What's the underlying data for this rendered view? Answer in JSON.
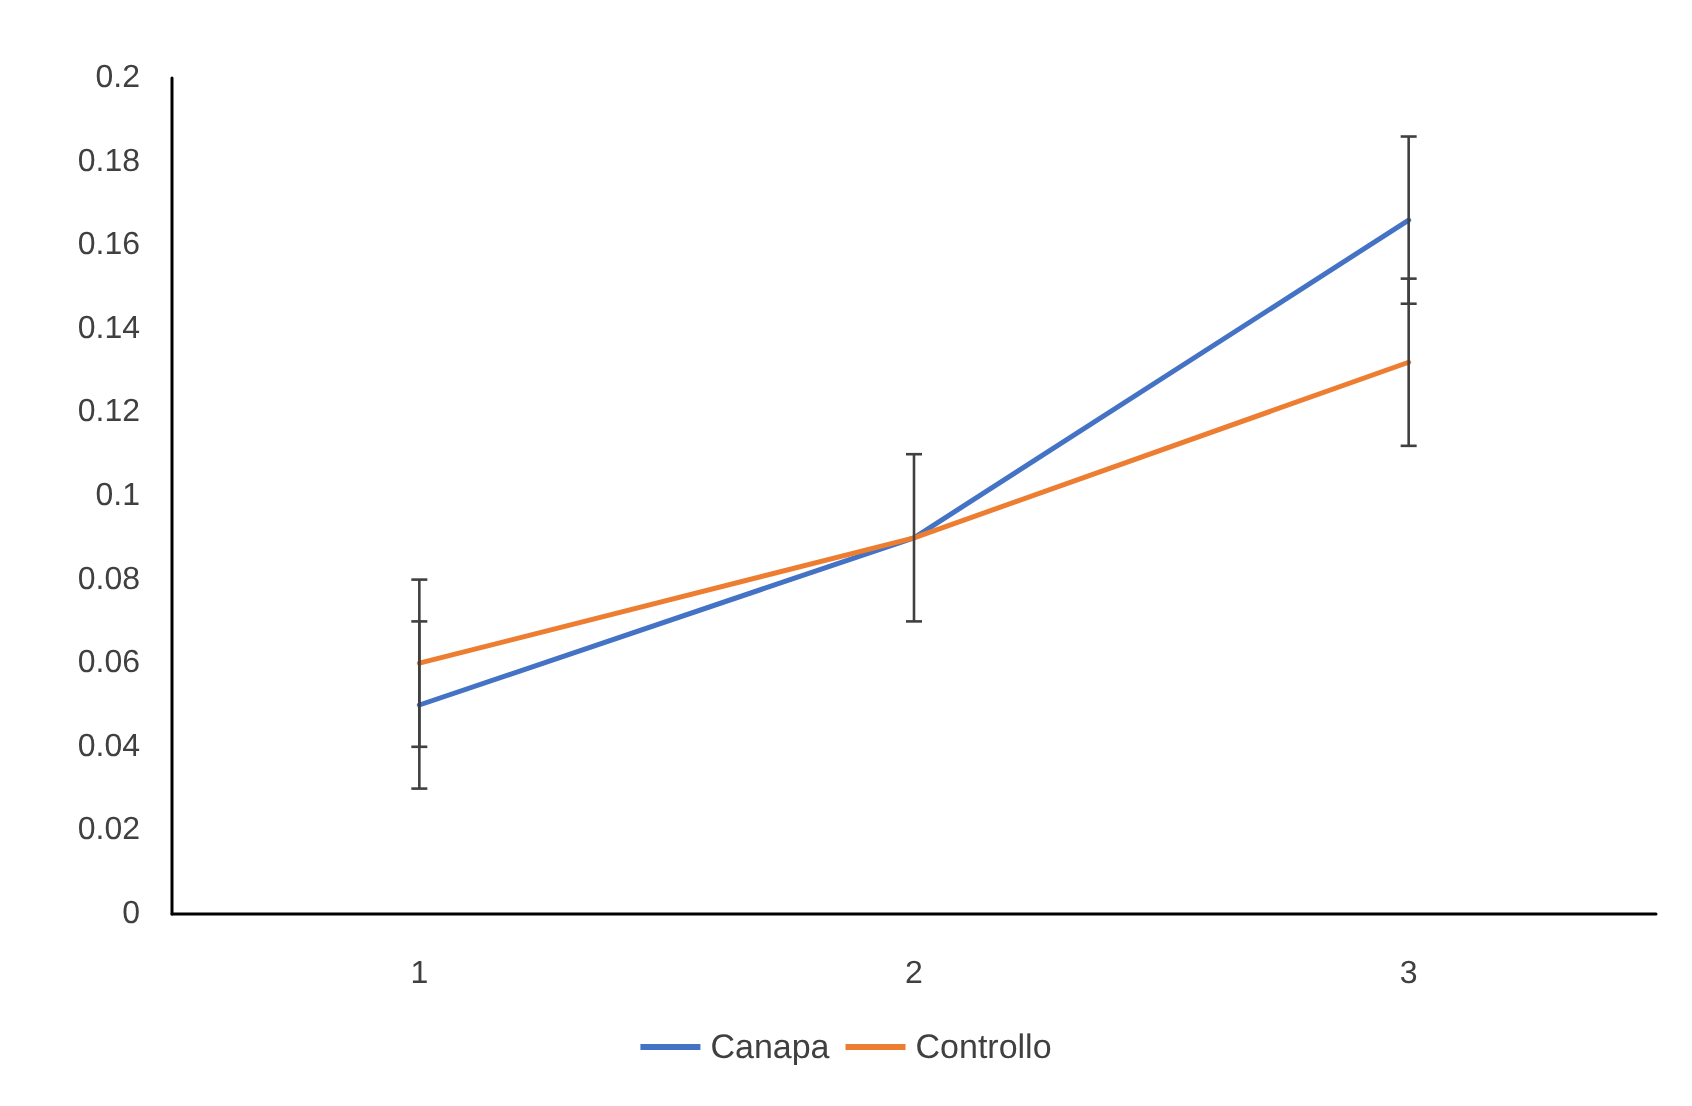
{
  "chart_data": {
    "type": "line",
    "categories": [
      "1",
      "2",
      "3"
    ],
    "series": [
      {
        "name": "Canapa",
        "color": "#4472c4",
        "values": [
          0.05,
          0.09,
          0.166
        ],
        "errors": [
          0.02,
          0.02,
          0.02
        ]
      },
      {
        "name": "Controllo",
        "color": "#ed7d31",
        "values": [
          0.06,
          0.09,
          0.132
        ],
        "errors": [
          0.02,
          0.02,
          0.02
        ]
      }
    ],
    "ylim": [
      0,
      0.2
    ],
    "yticks": [
      0,
      0.02,
      0.04,
      0.06,
      0.08,
      0.1,
      0.12,
      0.14,
      0.16,
      0.18,
      0.2
    ],
    "grid": false,
    "legend": "bottom",
    "marker": "none",
    "line_style": "solid"
  }
}
